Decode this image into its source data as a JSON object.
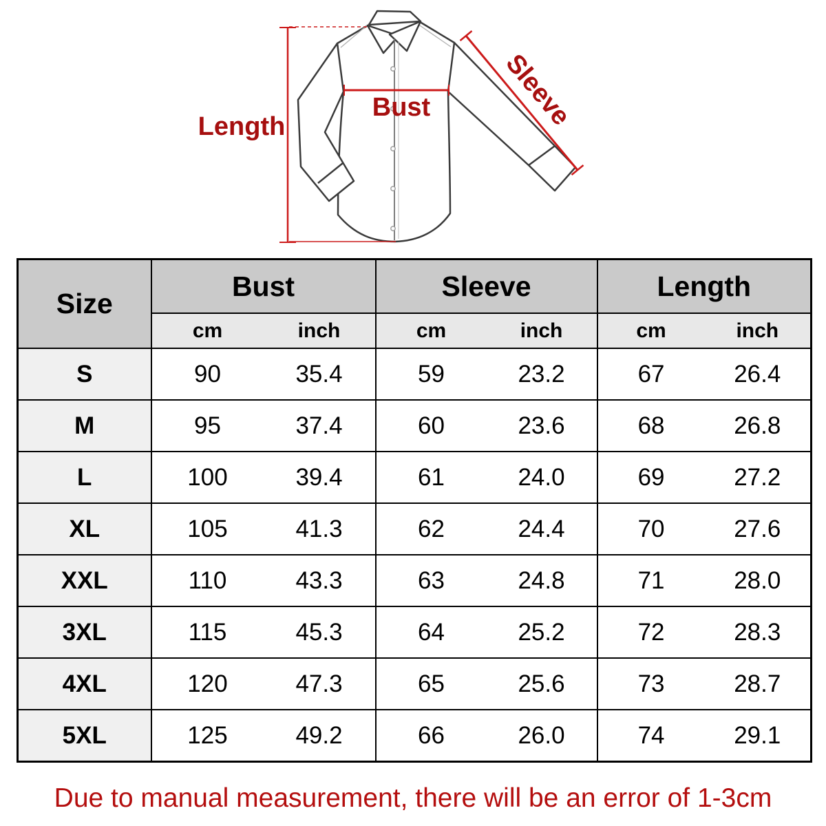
{
  "diagram": {
    "labels": {
      "length": "Length",
      "bust": "Bust",
      "sleeve": "Sleeve"
    }
  },
  "chart_data": {
    "type": "table",
    "header": {
      "size": "Size",
      "groups": [
        "Bust",
        "Sleeve",
        "Length"
      ],
      "units": [
        "cm",
        "inch"
      ]
    },
    "rows": [
      {
        "size": "S",
        "bust_cm": "90",
        "bust_inch": "35.4",
        "sleeve_cm": "59",
        "sleeve_inch": "23.2",
        "length_cm": "67",
        "length_inch": "26.4"
      },
      {
        "size": "M",
        "bust_cm": "95",
        "bust_inch": "37.4",
        "sleeve_cm": "60",
        "sleeve_inch": "23.6",
        "length_cm": "68",
        "length_inch": "26.8"
      },
      {
        "size": "L",
        "bust_cm": "100",
        "bust_inch": "39.4",
        "sleeve_cm": "61",
        "sleeve_inch": "24.0",
        "length_cm": "69",
        "length_inch": "27.2"
      },
      {
        "size": "XL",
        "bust_cm": "105",
        "bust_inch": "41.3",
        "sleeve_cm": "62",
        "sleeve_inch": "24.4",
        "length_cm": "70",
        "length_inch": "27.6"
      },
      {
        "size": "XXL",
        "bust_cm": "110",
        "bust_inch": "43.3",
        "sleeve_cm": "63",
        "sleeve_inch": "24.8",
        "length_cm": "71",
        "length_inch": "28.0"
      },
      {
        "size": "3XL",
        "bust_cm": "115",
        "bust_inch": "45.3",
        "sleeve_cm": "64",
        "sleeve_inch": "25.2",
        "length_cm": "72",
        "length_inch": "28.3"
      },
      {
        "size": "4XL",
        "bust_cm": "120",
        "bust_inch": "47.3",
        "sleeve_cm": "65",
        "sleeve_inch": "25.6",
        "length_cm": "73",
        "length_inch": "28.7"
      },
      {
        "size": "5XL",
        "bust_cm": "125",
        "bust_inch": "49.2",
        "sleeve_cm": "66",
        "sleeve_inch": "26.0",
        "length_cm": "74",
        "length_inch": "29.1"
      }
    ]
  },
  "note": {
    "text": "Due to manual measurement, there will be an error of 1-3cm"
  },
  "colors": {
    "label_red": "#a60f0f",
    "measure_line_red": "#cc1a1a",
    "note_red": "#b40e0e",
    "header_bg": "#cacaca",
    "subheader_bg": "#e8e8e8",
    "size_column_bg": "#f0f0f0",
    "table_border": "#000000",
    "shirt_outline": "#3a3a3a"
  }
}
